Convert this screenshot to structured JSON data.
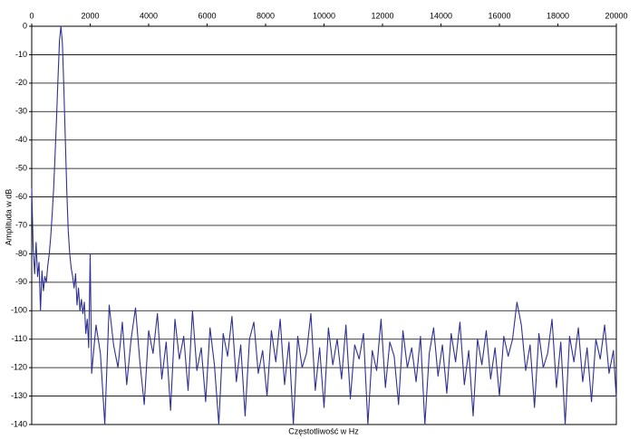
{
  "chart_data": {
    "type": "line",
    "x_label": "Częstotliwość w Hz",
    "y_label": "Amplituda w dB",
    "xlim": [
      0,
      20000
    ],
    "ylim": [
      -140,
      0
    ],
    "xticks": [
      0,
      2000,
      4000,
      6000,
      8000,
      10000,
      12000,
      14000,
      16000,
      18000,
      20000
    ],
    "yticks": [
      0,
      -10,
      -20,
      -30,
      -40,
      -50,
      -60,
      -70,
      -80,
      -90,
      -100,
      -110,
      -120,
      -130,
      -140
    ],
    "grid": true,
    "series": [
      {
        "color": "#2e3192",
        "x": [
          0,
          50,
          100,
          150,
          200,
          250,
          300,
          350,
          400,
          450,
          500,
          550,
          600,
          650,
          700,
          750,
          800,
          850,
          900,
          950,
          1000,
          1050,
          1100,
          1150,
          1200,
          1250,
          1300,
          1350,
          1400,
          1450,
          1500,
          1550,
          1600,
          1650,
          1700,
          1750,
          1800,
          1850,
          1900,
          1950,
          2000,
          2050,
          2200,
          2350,
          2500,
          2650,
          2800,
          2950,
          3100,
          3250,
          3400,
          3550,
          3700,
          3850,
          4000,
          4150,
          4300,
          4450,
          4600,
          4750,
          4900,
          5050,
          5200,
          5350,
          5500,
          5650,
          5800,
          5950,
          6100,
          6250,
          6400,
          6550,
          6700,
          6850,
          7000,
          7150,
          7300,
          7450,
          7600,
          7750,
          7900,
          8050,
          8200,
          8350,
          8500,
          8650,
          8800,
          8950,
          9100,
          9250,
          9400,
          9550,
          9700,
          9850,
          10000,
          10150,
          10300,
          10450,
          10600,
          10750,
          10900,
          11050,
          11200,
          11350,
          11500,
          11650,
          11800,
          11950,
          12100,
          12250,
          12400,
          12550,
          12700,
          12850,
          13000,
          13150,
          13300,
          13450,
          13600,
          13750,
          13900,
          14050,
          14200,
          14350,
          14500,
          14650,
          14800,
          14950,
          15100,
          15250,
          15400,
          15550,
          15700,
          15850,
          16000,
          16150,
          16300,
          16450,
          16600,
          16750,
          16900,
          17050,
          17200,
          17350,
          17500,
          17650,
          17800,
          17950,
          18100,
          18250,
          18400,
          18550,
          18700,
          18850,
          19000,
          19150,
          19300,
          19450,
          19600,
          19750,
          19900,
          20000
        ],
        "values": [
          -57,
          -78,
          -87,
          -76,
          -88,
          -83,
          -100,
          -86,
          -93,
          -88,
          -90,
          -84,
          -80,
          -74,
          -66,
          -57,
          -45,
          -32,
          -18,
          -5,
          0,
          -6,
          -22,
          -40,
          -58,
          -72,
          -80,
          -85,
          -88,
          -92,
          -87,
          -98,
          -92,
          -100,
          -96,
          -101,
          -97,
          -108,
          -103,
          -113,
          -80,
          -122,
          -105,
          -115,
          -140,
          -98,
          -112,
          -120,
          -104,
          -126,
          -110,
          -99,
          -118,
          -133,
          -107,
          -115,
          -101,
          -124,
          -111,
          -135,
          -103,
          -117,
          -109,
          -128,
          -100,
          -121,
          -113,
          -132,
          -106,
          -119,
          -140,
          -108,
          -116,
          -102,
          -125,
          -112,
          -137,
          -110,
          -104,
          -122,
          -114,
          -130,
          -107,
          -118,
          -103,
          -126,
          -111,
          -140,
          -109,
          -120,
          -115,
          -101,
          -128,
          -113,
          -134,
          -106,
          -119,
          -110,
          -124,
          -105,
          -131,
          -112,
          -117,
          -108,
          -140,
          -114,
          -121,
          -103,
          -127,
          -111,
          -116,
          -133,
          -107,
          -120,
          -113,
          -125,
          -109,
          -140,
          -115,
          -106,
          -123,
          -112,
          -129,
          -108,
          -118,
          -104,
          -126,
          -114,
          -137,
          -110,
          -119,
          -107,
          -124,
          -113,
          -130,
          -109,
          -116,
          -110,
          -97,
          -105,
          -121,
          -112,
          -134,
          -108,
          -120,
          -115,
          -103,
          -127,
          -111,
          -140,
          -109,
          -118,
          -106,
          -125,
          -113,
          -132,
          -110,
          -117,
          -105,
          -122,
          -114,
          -131
        ]
      }
    ]
  }
}
